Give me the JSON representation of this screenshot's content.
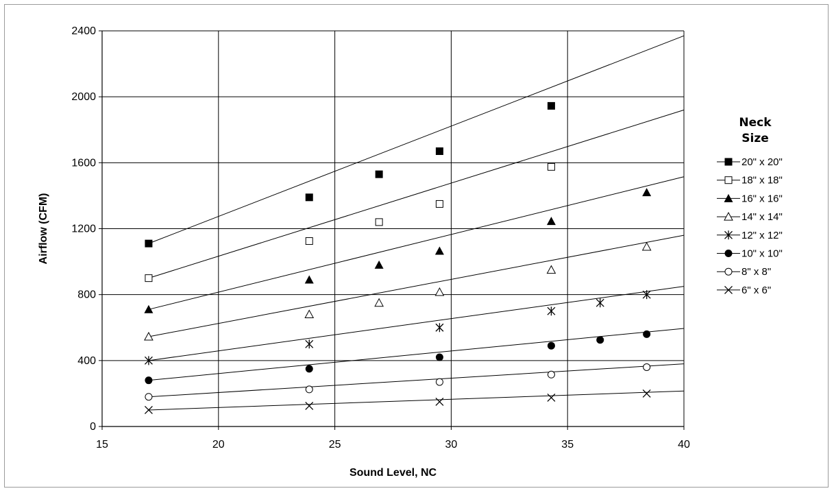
{
  "chart_data": {
    "type": "line",
    "title": "",
    "xlabel": "Sound Level, NC",
    "ylabel": "Airflow (CFM)",
    "xlim": [
      15,
      40
    ],
    "ylim": [
      0,
      2400
    ],
    "xticks": [
      15,
      20,
      25,
      30,
      35,
      40
    ],
    "yticks": [
      0,
      400,
      800,
      1200,
      1600,
      2000,
      2400
    ],
    "grid": true,
    "legend": {
      "title_line1": "Neck",
      "title_line2": "Size",
      "placement": "right"
    },
    "series": [
      {
        "name": "20\" x 20\"",
        "marker": "square-filled",
        "points": [
          [
            17,
            1110
          ],
          [
            23.9,
            1390
          ],
          [
            26.9,
            1530
          ],
          [
            29.5,
            1670
          ],
          [
            34.3,
            1945
          ]
        ],
        "trend": [
          [
            17,
            1110
          ],
          [
            40,
            2370
          ]
        ]
      },
      {
        "name": "18\" x 18\"",
        "marker": "square-open",
        "points": [
          [
            17,
            900
          ],
          [
            23.9,
            1125
          ],
          [
            26.9,
            1240
          ],
          [
            29.5,
            1350
          ],
          [
            34.3,
            1575
          ]
        ],
        "trend": [
          [
            17,
            900
          ],
          [
            40,
            1920
          ]
        ]
      },
      {
        "name": "16\" x 16\"",
        "marker": "triangle-filled",
        "points": [
          [
            17,
            710
          ],
          [
            23.9,
            890
          ],
          [
            26.9,
            980
          ],
          [
            29.5,
            1065
          ],
          [
            34.3,
            1245
          ],
          [
            38.4,
            1420
          ]
        ],
        "trend": [
          [
            17,
            710
          ],
          [
            40,
            1515
          ]
        ]
      },
      {
        "name": "14\" x 14\"",
        "marker": "triangle-open",
        "points": [
          [
            17,
            545
          ],
          [
            23.9,
            680
          ],
          [
            26.9,
            750
          ],
          [
            29.5,
            815
          ],
          [
            34.3,
            950
          ],
          [
            38.4,
            1090
          ]
        ],
        "trend": [
          [
            17,
            545
          ],
          [
            40,
            1160
          ]
        ]
      },
      {
        "name": "12\" x 12\"",
        "marker": "asterisk",
        "points": [
          [
            17,
            400
          ],
          [
            23.9,
            500
          ],
          [
            29.5,
            600
          ],
          [
            34.3,
            700
          ],
          [
            36.4,
            750
          ],
          [
            38.4,
            800
          ]
        ],
        "trend": [
          [
            17,
            400
          ],
          [
            40,
            850
          ]
        ]
      },
      {
        "name": "10\" x 10\"",
        "marker": "circle-filled",
        "points": [
          [
            17,
            280
          ],
          [
            23.9,
            350
          ],
          [
            29.5,
            420
          ],
          [
            34.3,
            490
          ],
          [
            36.4,
            525
          ],
          [
            38.4,
            560
          ]
        ],
        "trend": [
          [
            17,
            280
          ],
          [
            40,
            595
          ]
        ]
      },
      {
        "name": "8\" x 8\"",
        "marker": "circle-open",
        "points": [
          [
            17,
            180
          ],
          [
            23.9,
            225
          ],
          [
            29.5,
            270
          ],
          [
            34.3,
            315
          ],
          [
            38.4,
            360
          ]
        ],
        "trend": [
          [
            17,
            180
          ],
          [
            40,
            380
          ]
        ]
      },
      {
        "name": "6\" x 6\"",
        "marker": "x",
        "points": [
          [
            17,
            100
          ],
          [
            23.9,
            125
          ],
          [
            29.5,
            150
          ],
          [
            34.3,
            175
          ],
          [
            38.4,
            200
          ]
        ],
        "trend": [
          [
            17,
            100
          ],
          [
            40,
            215
          ]
        ]
      }
    ]
  }
}
